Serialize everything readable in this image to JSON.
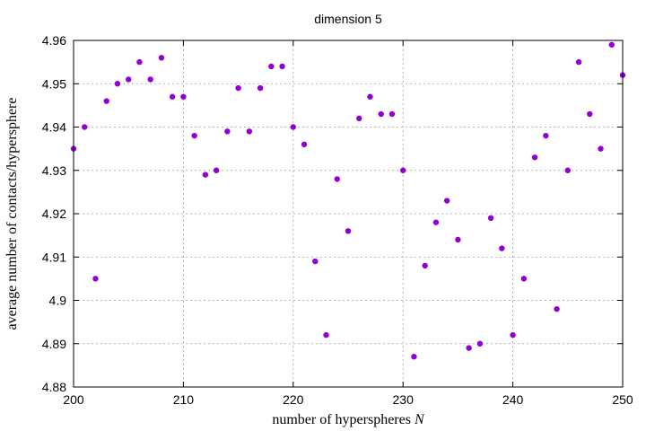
{
  "chart_data": {
    "type": "scatter",
    "title": "dimension 5",
    "xlabel": "number of hyperspheres ",
    "xlabel_var": "N",
    "ylabel": "average number of contacts/hypersphere",
    "xlim": [
      200,
      250
    ],
    "ylim": [
      4.88,
      4.96
    ],
    "xticks": [
      200,
      210,
      220,
      230,
      240,
      250
    ],
    "xtick_labels": [
      "200",
      "210",
      "220",
      "230",
      "240",
      "250"
    ],
    "yticks": [
      4.88,
      4.89,
      4.9,
      4.91,
      4.92,
      4.93,
      4.94,
      4.95,
      4.96
    ],
    "ytick_labels": [
      "4.88",
      "4.89",
      "4.9",
      "4.91",
      "4.92",
      "4.93",
      "4.94",
      "4.95",
      "4.96"
    ],
    "grid": true,
    "marker_color": "#9400d3",
    "series": [
      {
        "x": [
          200,
          201,
          202,
          203,
          204,
          205,
          206,
          207,
          208,
          209,
          210,
          211,
          212,
          213,
          214,
          215,
          216,
          217,
          218,
          219,
          220,
          221,
          222,
          223,
          224,
          225,
          226,
          227,
          228,
          229,
          230,
          231,
          232,
          233,
          234,
          235,
          236,
          237,
          238,
          239,
          240,
          241,
          242,
          243,
          244,
          245,
          246,
          247,
          248,
          249,
          250
        ],
        "y": [
          4.935,
          4.94,
          4.905,
          4.946,
          4.95,
          4.951,
          4.955,
          4.951,
          4.956,
          4.947,
          4.947,
          4.938,
          4.929,
          4.93,
          4.939,
          4.949,
          4.939,
          4.949,
          4.954,
          4.954,
          4.94,
          4.936,
          4.909,
          4.892,
          4.928,
          4.916,
          4.942,
          4.947,
          4.943,
          4.943,
          4.93,
          4.887,
          4.908,
          4.918,
          4.923,
          4.914,
          4.889,
          4.89,
          4.919,
          4.912,
          4.892,
          4.905,
          4.933,
          4.938,
          4.898,
          4.93,
          4.955,
          4.943,
          4.935,
          4.959,
          4.952
        ]
      }
    ]
  }
}
